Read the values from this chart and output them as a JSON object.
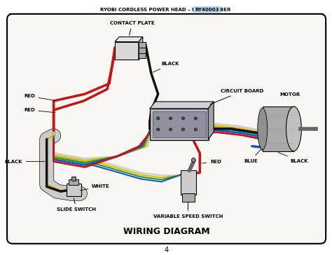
{
  "title_text": "RYOBI CORDLESS POWER HEAD – ITEM NUMBER ",
  "title_highlight": "RY40003",
  "bottom_title": "WIRING DIAGRAM",
  "page_number": "4",
  "bg_color": "#f5f4f0",
  "border_color": "#000000",
  "labels": {
    "contact_plate": "CONTACT PLATE",
    "black1": "BLACK",
    "circuit_board": "CIRCUIT BOARD",
    "motor": "MOTOR",
    "red1": "RED",
    "red2": "RED",
    "black2": "BLACK",
    "white": "WHITE",
    "red3": "RED",
    "blue": "BLUE",
    "black3": "BLACK",
    "slide_switch": "SLIDE SWITCH",
    "variable_speed_switch": "VARIABLE SPEED SWITCH"
  }
}
